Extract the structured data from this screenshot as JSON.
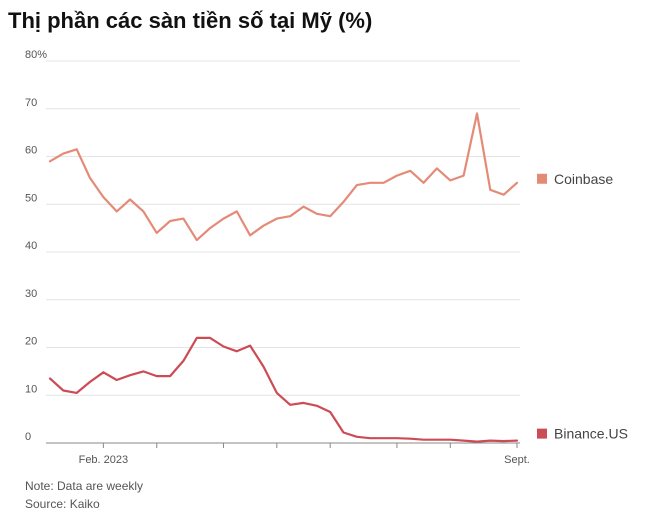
{
  "colors": {
    "coinbase": "#E48B77",
    "binance": "#CC4C55",
    "grid": "#e4e4e4",
    "axis": "#888888"
  },
  "chart_data": {
    "type": "line",
    "title": "Thị phần các sàn tiền số tại Mỹ (%)",
    "ylim": [
      0,
      80
    ],
    "yticks": [
      0,
      10,
      20,
      30,
      40,
      50,
      60,
      70,
      80
    ],
    "ytick_labels": [
      "0",
      "10",
      "20",
      "30",
      "40",
      "50",
      "60",
      "70",
      "80%"
    ],
    "xtick_labels": [
      {
        "label": "Feb. 2023",
        "week": 4
      },
      {
        "label": "Sept.",
        "week": 35
      }
    ],
    "x_minor_ticks": [
      4,
      8,
      13,
      17,
      21,
      26,
      30,
      35
    ],
    "grid": true,
    "legend_placement": "right",
    "series": [
      {
        "name": "Coinbase",
        "color_key": "coinbase",
        "values": [
          59,
          60.6,
          61.5,
          55.5,
          51.5,
          48.5,
          51,
          48.5,
          44,
          46.5,
          47,
          42.5,
          45,
          47,
          48.5,
          43.5,
          45.5,
          47,
          47.5,
          49.5,
          48,
          47.5,
          50.5,
          54,
          54.5,
          54.5,
          56,
          57,
          54.5,
          57.5,
          55,
          56,
          69,
          53,
          52,
          54.5
        ]
      },
      {
        "name": "Binance.US",
        "color_key": "binance",
        "values": [
          13.5,
          11,
          10.5,
          12.8,
          14.8,
          13.2,
          14.2,
          15,
          14,
          14,
          17.2,
          22,
          22,
          20.2,
          19.2,
          20.4,
          16,
          10.5,
          8,
          8.4,
          7.8,
          6.5,
          2.2,
          1.3,
          1,
          1,
          1,
          0.9,
          0.7,
          0.7,
          0.7,
          0.5,
          0.3,
          0.5,
          0.4,
          0.5
        ]
      }
    ]
  },
  "footer": {
    "note": "Note: Data are weekly",
    "source": "Source: Kaiko"
  }
}
